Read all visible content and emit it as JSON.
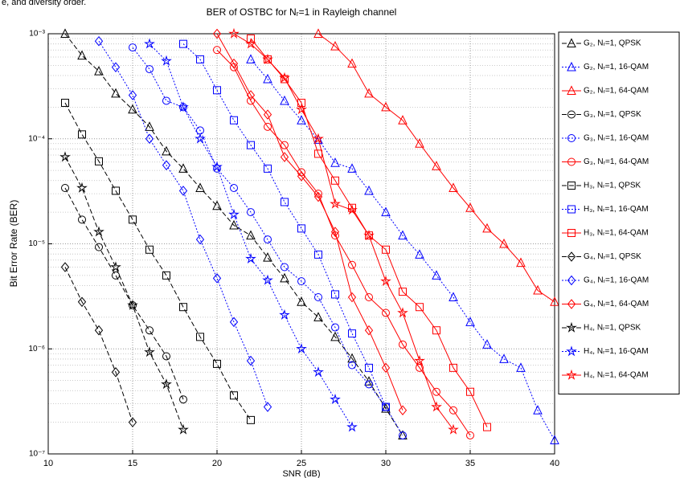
{
  "header_text": "e, and diversity order.",
  "chart_data": {
    "type": "line",
    "title": "BER of OSTBC for Nᵣ=1 in Rayleigh channel",
    "xlabel": "SNR (dB)",
    "ylabel": "Bit Error Rate (BER)",
    "xlim": [
      10,
      40
    ],
    "xticks": [
      10,
      15,
      20,
      25,
      30,
      35,
      40
    ],
    "ylim": [
      1e-07,
      0.001
    ],
    "log_y": true,
    "grid": true,
    "legend": "outside right",
    "yticks": [
      {
        "value": 1e-07,
        "label": "10⁻⁷"
      },
      {
        "value": 1e-06,
        "label": "10⁻⁶"
      },
      {
        "value": 1e-05,
        "label": "10⁻⁵"
      },
      {
        "value": 0.0001,
        "label": "10⁻⁴"
      },
      {
        "value": 0.001,
        "label": "10⁻³"
      }
    ],
    "series": [
      {
        "name": "G₂, Nᵣ=1, QPSK",
        "color": "#000000",
        "line": "dashed",
        "marker": "triangle",
        "x": [
          11,
          12,
          13,
          14,
          15,
          16,
          17,
          18,
          19,
          20,
          21,
          22,
          23,
          24,
          25,
          26,
          27,
          28,
          29,
          30,
          31
        ],
        "values": [
          0.001,
          0.00062,
          0.00044,
          0.00027,
          0.00019,
          0.00013,
          7.6e-05,
          5.2e-05,
          3.4e-05,
          2.3e-05,
          1.5e-05,
          1.2e-05,
          7.4e-06,
          4.7e-06,
          2.8e-06,
          2e-06,
          1.3e-06,
          8.1e-07,
          4.9e-07,
          2.7e-07,
          1.5e-07
        ]
      },
      {
        "name": "G₂, Nᵣ=1, 16-QAM",
        "color": "#0000ff",
        "line": "dotted",
        "marker": "triangle",
        "x": [
          22,
          23,
          24,
          25,
          26,
          27,
          28,
          29,
          30,
          31,
          32,
          33,
          34,
          35,
          36,
          37,
          38,
          39,
          40
        ],
        "values": [
          0.00057,
          0.00037,
          0.00023,
          0.00015,
          9.8e-05,
          5.9e-05,
          5.2e-05,
          3.2e-05,
          2e-05,
          1.2e-05,
          7.9e-06,
          5e-06,
          3.1e-06,
          1.8e-06,
          1.1e-06,
          8e-07,
          6.6e-07,
          2.6e-07,
          1.35e-07
        ]
      },
      {
        "name": "G₂, Nᵣ=1, 64-QAM",
        "color": "#ff0000",
        "line": "solid",
        "marker": "triangle",
        "x": [
          26,
          27,
          28,
          29,
          30,
          31,
          32,
          33,
          34,
          35,
          36,
          37,
          38,
          39,
          40
        ],
        "values": [
          0.001,
          0.00076,
          0.00052,
          0.00027,
          0.0002,
          0.00015,
          9e-05,
          5.5e-05,
          3.4e-05,
          2.2e-05,
          1.4e-05,
          1e-05,
          6.6e-06,
          3.6e-06,
          2.8e-06
        ]
      },
      {
        "name": "G₃, Nᵣ=1, QPSK",
        "color": "#000000",
        "line": "dashed",
        "marker": "circle",
        "x": [
          11,
          12,
          13,
          14,
          15,
          16,
          17,
          18
        ],
        "values": [
          3.4e-05,
          1.7e-05,
          9.3e-06,
          5e-06,
          2.6e-06,
          1.5e-06,
          8.5e-07,
          3.3e-07
        ]
      },
      {
        "name": "G₃, Nᵣ=1, 16-QAM",
        "color": "#0000ff",
        "line": "dotted",
        "marker": "circle",
        "x": [
          15,
          16,
          17,
          18,
          19,
          20,
          21,
          22,
          23,
          24,
          25,
          26,
          27,
          28,
          29,
          30,
          31
        ],
        "values": [
          0.00074,
          0.00046,
          0.00023,
          0.0002,
          0.00012,
          5.2e-05,
          3.4e-05,
          2e-05,
          1.1e-05,
          6e-06,
          4.4e-06,
          3.1e-06,
          1.6e-06,
          7e-07,
          4.6e-07,
          2.8e-07,
          1.5e-07
        ]
      },
      {
        "name": "G₃, Nᵣ=1, 64-QAM",
        "color": "#ff0000",
        "line": "solid",
        "marker": "circle",
        "x": [
          20,
          21,
          22,
          23,
          24,
          25,
          26,
          27,
          28,
          29,
          30,
          31,
          32,
          33,
          34,
          35
        ],
        "values": [
          0.0007,
          0.00048,
          0.00023,
          0.00013,
          8.7e-05,
          4.8e-05,
          3e-05,
          1.2e-05,
          6.3e-06,
          3.1e-06,
          2.2e-06,
          1.1e-06,
          6.6e-07,
          3.9e-07,
          2.6e-07,
          1.5e-07
        ]
      },
      {
        "name": "H₃, Nᵣ=1, QPSK",
        "color": "#000000",
        "line": "dashed",
        "marker": "square",
        "x": [
          11,
          12,
          13,
          14,
          15,
          16,
          17,
          18,
          19,
          20,
          21,
          22
        ],
        "values": [
          0.00022,
          0.00011,
          6.1e-05,
          3.2e-05,
          1.7e-05,
          8.8e-06,
          5e-06,
          2.5e-06,
          1.3e-06,
          7.2e-07,
          3.6e-07,
          2.1e-07
        ]
      },
      {
        "name": "H₃, Nᵣ=1, 16-QAM",
        "color": "#0000ff",
        "line": "dotted",
        "marker": "square",
        "x": [
          18,
          19,
          20,
          21,
          22,
          23,
          24,
          25,
          26,
          27,
          28,
          29,
          30
        ],
        "values": [
          0.0008,
          0.00057,
          0.00029,
          0.00015,
          8.7e-05,
          5.2e-05,
          2.5e-05,
          1.4e-05,
          7.9e-06,
          3.3e-06,
          1.4e-06,
          6.6e-07,
          2.8e-07
        ]
      },
      {
        "name": "H₃, Nᵣ=1, 64-QAM",
        "color": "#ff0000",
        "line": "solid",
        "marker": "square",
        "x": [
          22,
          23,
          24,
          25,
          26,
          27,
          28,
          29,
          30,
          31,
          32,
          33,
          34,
          35,
          36
        ],
        "values": [
          0.0009,
          0.00057,
          0.00037,
          0.00022,
          7.2e-05,
          4e-05,
          2.2e-05,
          1.2e-05,
          8.8e-06,
          3.5e-06,
          2.5e-06,
          1.5e-06,
          6.6e-07,
          3.9e-07,
          1.8e-07
        ]
      },
      {
        "name": "G₄, Nᵣ=1, QPSK",
        "color": "#000000",
        "line": "dashed",
        "marker": "diamond",
        "x": [
          11,
          12,
          13,
          14,
          15
        ],
        "values": [
          6e-06,
          2.8e-06,
          1.5e-06,
          6e-07,
          2e-07
        ]
      },
      {
        "name": "G₄, Nᵣ=1, 16-QAM",
        "color": "#0000ff",
        "line": "dotted",
        "marker": "diamond",
        "x": [
          13,
          14,
          15,
          16,
          17,
          18,
          19,
          20,
          21,
          22,
          23
        ],
        "values": [
          0.00085,
          0.00048,
          0.00026,
          0.0001,
          5.6e-05,
          3.2e-05,
          1.1e-05,
          4.7e-06,
          1.8e-06,
          7.7e-07,
          2.8e-07
        ]
      },
      {
        "name": "G₄, Nᵣ=1, 64-QAM",
        "color": "#ff0000",
        "line": "solid",
        "marker": "diamond",
        "x": [
          20,
          21,
          22,
          23,
          24,
          25,
          26,
          27,
          28,
          29,
          30,
          31
        ],
        "values": [
          0.001,
          0.00052,
          0.00026,
          0.00017,
          6.7e-05,
          4.4e-05,
          2.8e-05,
          1.3e-05,
          3.1e-06,
          1.5e-06,
          6.6e-07,
          2.6e-07
        ]
      },
      {
        "name": "H₄, Nᵣ=1, QPSK",
        "color": "#000000",
        "line": "dashed",
        "marker": "star",
        "x": [
          11,
          12,
          13,
          14,
          15,
          16,
          17,
          18
        ],
        "values": [
          6.7e-05,
          3.4e-05,
          1.3e-05,
          6e-06,
          2.6e-06,
          9.3e-07,
          4.6e-07,
          1.7e-07
        ]
      },
      {
        "name": "H₄, Nᵣ=1, 16-QAM",
        "color": "#0000ff",
        "line": "dotted",
        "marker": "star",
        "x": [
          16,
          17,
          18,
          19,
          20,
          21,
          22,
          23,
          24,
          25,
          26,
          27,
          28
        ],
        "values": [
          0.0008,
          0.00055,
          0.0002,
          0.0001,
          5.4e-05,
          1.9e-05,
          7.2e-06,
          4.5e-06,
          2.1e-06,
          1e-06,
          6e-07,
          3.3e-07,
          1.8e-07
        ]
      },
      {
        "name": "H₄, Nᵣ=1, 64-QAM",
        "color": "#ff0000",
        "line": "solid",
        "marker": "star",
        "x": [
          21,
          22,
          23,
          24,
          25,
          26,
          27,
          28,
          29,
          30,
          31,
          32,
          33,
          34
        ],
        "values": [
          0.001,
          0.0008,
          0.00057,
          0.00038,
          0.00019,
          0.0001,
          2.4e-05,
          2.1e-05,
          1.2e-05,
          4.4e-06,
          2.2e-06,
          7.7e-07,
          2.8e-07,
          1.7e-07
        ]
      }
    ]
  }
}
